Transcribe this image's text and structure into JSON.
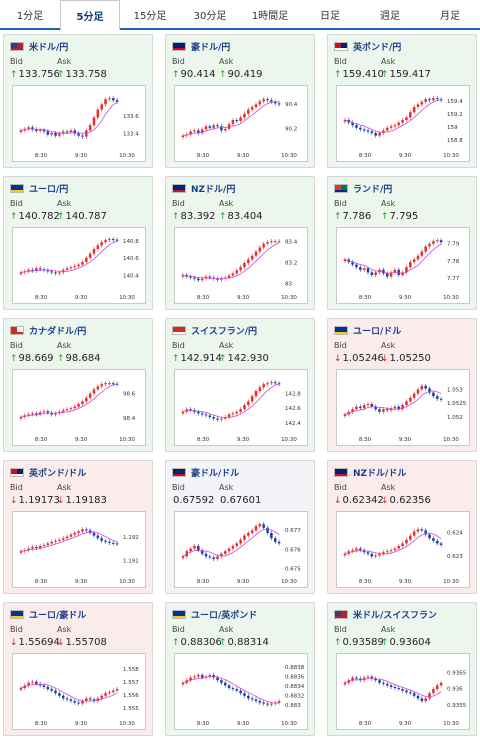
{
  "tabs": [
    {
      "label": "1分足",
      "active": false
    },
    {
      "label": "5分足",
      "active": true
    },
    {
      "label": "15分足",
      "active": false
    },
    {
      "label": "30分足",
      "active": false
    },
    {
      "label": "1時間足",
      "active": false
    },
    {
      "label": "日足",
      "active": false
    },
    {
      "label": "週足",
      "active": false
    },
    {
      "label": "月足",
      "active": false
    }
  ],
  "labels": {
    "bid": "Bid",
    "ask": "Ask"
  },
  "colors": {
    "up_arrow": "#1f9a2f",
    "down_arrow": "#d42020",
    "candle_up": "#e03030",
    "candle_down": "#1d3fa8",
    "ma_line": "#d04ad8",
    "pair_text": "#1b3d8f"
  },
  "cards": [
    {
      "pair": "米ドル/円",
      "flag": "us",
      "trend": "up",
      "bid_dir": "up",
      "bid": "133.756",
      "ask_dir": "up",
      "ask": "133.758",
      "chart": {
        "x_ticks": [
          "8:30",
          "9:30",
          "10:30"
        ],
        "y_ticks": [
          "133.6",
          "133.4"
        ],
        "ylim": [
          133.25,
          133.85
        ],
        "shape": [
          0.3,
          0.33,
          0.36,
          0.32,
          0.29,
          0.31,
          0.28,
          0.22,
          0.25,
          0.2,
          0.24,
          0.28,
          0.27,
          0.3,
          0.24,
          0.2,
          0.18,
          0.3,
          0.4,
          0.55,
          0.7,
          0.8,
          0.9,
          0.92,
          0.88,
          0.85
        ]
      }
    },
    {
      "pair": "豪ドル/円",
      "flag": "au",
      "trend": "up",
      "bid_dir": "up",
      "bid": "90.414",
      "ask_dir": "up",
      "ask": "90.419",
      "chart": {
        "x_ticks": [
          "8:30",
          "9:30",
          "10:30"
        ],
        "y_ticks": [
          "90.4",
          "90.2"
        ],
        "ylim": [
          90.05,
          90.48
        ],
        "shape": [
          0.2,
          0.22,
          0.28,
          0.3,
          0.25,
          0.32,
          0.38,
          0.35,
          0.4,
          0.38,
          0.3,
          0.33,
          0.42,
          0.5,
          0.48,
          0.55,
          0.62,
          0.7,
          0.75,
          0.8,
          0.86,
          0.9,
          0.88,
          0.85,
          0.82,
          0.8
        ]
      }
    },
    {
      "pair": "英ポンド/円",
      "flag": "gb",
      "trend": "up",
      "bid_dir": "up",
      "bid": "159.410",
      "ask_dir": "up",
      "ask": "159.417",
      "chart": {
        "x_ticks": [
          "8:30",
          "9:30",
          "10:30"
        ],
        "y_ticks": [
          "159.4",
          "159.2",
          "159",
          "158.8"
        ],
        "ylim": [
          158.7,
          159.5
        ],
        "shape": [
          0.5,
          0.45,
          0.4,
          0.35,
          0.32,
          0.3,
          0.28,
          0.25,
          0.2,
          0.25,
          0.3,
          0.35,
          0.38,
          0.4,
          0.45,
          0.5,
          0.55,
          0.65,
          0.75,
          0.8,
          0.85,
          0.9,
          0.88,
          0.92,
          0.9,
          0.88
        ]
      }
    },
    {
      "pair": "ユーロ/円",
      "flag": "eu",
      "trend": "up",
      "bid_dir": "up",
      "bid": "140.782",
      "ask_dir": "up",
      "ask": "140.787",
      "chart": {
        "x_ticks": [
          "8:30",
          "9:30",
          "10:30"
        ],
        "y_ticks": [
          "140.8",
          "140.6",
          "140.4"
        ],
        "ylim": [
          140.25,
          140.85
        ],
        "shape": [
          0.3,
          0.32,
          0.35,
          0.33,
          0.38,
          0.36,
          0.34,
          0.32,
          0.3,
          0.28,
          0.3,
          0.35,
          0.38,
          0.4,
          0.42,
          0.45,
          0.5,
          0.58,
          0.66,
          0.75,
          0.82,
          0.88,
          0.92,
          0.94,
          0.93,
          0.92
        ]
      }
    },
    {
      "pair": "NZドル/円",
      "flag": "nz",
      "trend": "up",
      "bid_dir": "up",
      "bid": "83.392",
      "ask_dir": "up",
      "ask": "83.404",
      "chart": {
        "x_ticks": [
          "8:30",
          "9:30",
          "10:30"
        ],
        "y_ticks": [
          "83.4",
          "83.2",
          "83"
        ],
        "ylim": [
          82.95,
          83.45
        ],
        "shape": [
          0.25,
          0.22,
          0.2,
          0.18,
          0.15,
          0.18,
          0.22,
          0.2,
          0.18,
          0.16,
          0.18,
          0.2,
          0.24,
          0.28,
          0.34,
          0.4,
          0.48,
          0.55,
          0.62,
          0.7,
          0.78,
          0.85,
          0.88,
          0.9,
          0.9,
          0.9
        ]
      }
    },
    {
      "pair": "ランド/円",
      "flag": "za",
      "trend": "up",
      "bid_dir": "up",
      "bid": "7.786",
      "ask_dir": "up",
      "ask": "7.795",
      "chart": {
        "x_ticks": [
          "8:30",
          "9:30",
          "10:30"
        ],
        "y_ticks": [
          "7.79",
          "7.78",
          "7.77"
        ],
        "ylim": [
          7.764,
          7.794
        ],
        "shape": [
          0.55,
          0.5,
          0.45,
          0.4,
          0.35,
          0.38,
          0.3,
          0.25,
          0.3,
          0.35,
          0.28,
          0.22,
          0.3,
          0.35,
          0.25,
          0.3,
          0.4,
          0.5,
          0.55,
          0.62,
          0.7,
          0.8,
          0.85,
          0.9,
          0.92,
          0.88
        ]
      }
    },
    {
      "pair": "カナダドル/円",
      "flag": "ca",
      "trend": "up",
      "bid_dir": "up",
      "bid": "98.669",
      "ask_dir": "up",
      "ask": "98.684",
      "chart": {
        "x_ticks": [
          "8:30",
          "9:30",
          "10:30"
        ],
        "y_ticks": [
          "98.6",
          "98.4"
        ],
        "ylim": [
          98.3,
          98.72
        ],
        "shape": [
          0.25,
          0.28,
          0.3,
          0.32,
          0.3,
          0.34,
          0.36,
          0.33,
          0.3,
          0.32,
          0.35,
          0.38,
          0.4,
          0.42,
          0.45,
          0.5,
          0.55,
          0.62,
          0.7,
          0.78,
          0.84,
          0.88,
          0.9,
          0.9,
          0.89,
          0.88
        ]
      }
    },
    {
      "pair": "スイスフラン/円",
      "flag": "ch",
      "trend": "up",
      "bid_dir": "up",
      "bid": "142.914",
      "ask_dir": "up",
      "ask": "142.930",
      "chart": {
        "x_ticks": [
          "8:30",
          "9:30",
          "10:30"
        ],
        "y_ticks": [
          "142.8",
          "142.6",
          "142.4"
        ],
        "ylim": [
          142.3,
          143.0
        ],
        "shape": [
          0.35,
          0.4,
          0.38,
          0.35,
          0.32,
          0.3,
          0.28,
          0.25,
          0.22,
          0.2,
          0.22,
          0.25,
          0.3,
          0.32,
          0.35,
          0.4,
          0.48,
          0.55,
          0.65,
          0.75,
          0.82,
          0.88,
          0.9,
          0.92,
          0.9,
          0.88
        ]
      }
    },
    {
      "pair": "ユーロ/ドル",
      "flag": "eu",
      "trend": "down",
      "bid_dir": "down",
      "bid": "1.05246",
      "ask_dir": "down",
      "ask": "1.05250",
      "chart": {
        "x_ticks": [
          "8:30",
          "9:30",
          "10:30"
        ],
        "y_ticks": [
          "1.053",
          "1.0525",
          "1.052"
        ],
        "ylim": [
          1.0515,
          1.0534
        ],
        "shape": [
          0.3,
          0.35,
          0.4,
          0.45,
          0.42,
          0.48,
          0.5,
          0.45,
          0.4,
          0.35,
          0.4,
          0.38,
          0.42,
          0.45,
          0.4,
          0.48,
          0.55,
          0.62,
          0.7,
          0.78,
          0.85,
          0.8,
          0.72,
          0.65,
          0.6,
          0.58
        ]
      }
    },
    {
      "pair": "英ポンド/ドル",
      "flag": "gb",
      "trend": "down",
      "bid_dir": "down",
      "bid": "1.19173",
      "ask_dir": "down",
      "ask": "1.19183",
      "chart": {
        "x_ticks": [
          "8:30",
          "9:30",
          "10:30"
        ],
        "y_ticks": [
          "1.192",
          "1.191"
        ],
        "ylim": [
          1.1905,
          1.1927
        ],
        "shape": [
          0.4,
          0.42,
          0.45,
          0.48,
          0.46,
          0.5,
          0.52,
          0.55,
          0.58,
          0.6,
          0.62,
          0.65,
          0.68,
          0.72,
          0.75,
          0.78,
          0.82,
          0.8,
          0.75,
          0.7,
          0.65,
          0.6,
          0.58,
          0.56,
          0.55,
          0.54
        ]
      }
    },
    {
      "pair": "豪ドル/ドル",
      "flag": "au",
      "trend": "flat",
      "bid_dir": "none",
      "bid": "0.67592",
      "ask_dir": "none",
      "ask": "0.67601",
      "chart": {
        "x_ticks": [
          "8:30",
          "9:30",
          "10:30"
        ],
        "y_ticks": [
          "0.677",
          "0.676",
          "0.675"
        ],
        "ylim": [
          0.6748,
          0.6775
        ],
        "shape": [
          0.3,
          0.4,
          0.45,
          0.5,
          0.42,
          0.35,
          0.3,
          0.28,
          0.25,
          0.3,
          0.35,
          0.4,
          0.45,
          0.5,
          0.55,
          0.62,
          0.7,
          0.75,
          0.8,
          0.88,
          0.92,
          0.85,
          0.75,
          0.65,
          0.58,
          0.55
        ]
      }
    },
    {
      "pair": "NZドル/ドル",
      "flag": "nz",
      "trend": "down",
      "bid_dir": "down",
      "bid": "0.62342",
      "ask_dir": "down",
      "ask": "0.62356",
      "chart": {
        "x_ticks": [
          "8:30",
          "9:30",
          "10:30"
        ],
        "y_ticks": [
          "0.624",
          "0.623"
        ],
        "ylim": [
          0.6223,
          0.6245
        ],
        "shape": [
          0.35,
          0.4,
          0.42,
          0.45,
          0.42,
          0.38,
          0.35,
          0.3,
          0.32,
          0.35,
          0.38,
          0.4,
          0.42,
          0.45,
          0.5,
          0.55,
          0.62,
          0.7,
          0.78,
          0.82,
          0.8,
          0.72,
          0.65,
          0.6,
          0.55,
          0.52
        ]
      }
    },
    {
      "pair": "ユーロ/豪ドル",
      "flag": "eu",
      "trend": "down",
      "bid_dir": "down",
      "bid": "1.55694",
      "ask_dir": "down",
      "ask": "1.55708",
      "chart": {
        "x_ticks": [
          "8:30",
          "9:30",
          "10:30"
        ],
        "y_ticks": [
          "1.558",
          "1.557",
          "1.556",
          "1.555"
        ],
        "ylim": [
          1.5545,
          1.5585
        ],
        "shape": [
          0.5,
          0.55,
          0.6,
          0.62,
          0.58,
          0.55,
          0.52,
          0.48,
          0.45,
          0.4,
          0.35,
          0.3,
          0.28,
          0.25,
          0.22,
          0.2,
          0.25,
          0.3,
          0.28,
          0.25,
          0.3,
          0.35,
          0.4,
          0.42,
          0.45,
          0.48
        ]
      }
    },
    {
      "pair": "ユーロ/英ポンド",
      "flag": "eu",
      "trend": "up",
      "bid_dir": "up",
      "bid": "0.88306",
      "ask_dir": "up",
      "ask": "0.88314",
      "chart": {
        "x_ticks": [
          "8:30",
          "9:30",
          "10:30"
        ],
        "y_ticks": [
          "0.8838",
          "0.8836",
          "0.8834",
          "0.8832",
          "0.883"
        ],
        "ylim": [
          0.8828,
          0.8839
        ],
        "shape": [
          0.6,
          0.65,
          0.7,
          0.72,
          0.75,
          0.7,
          0.72,
          0.75,
          0.7,
          0.65,
          0.6,
          0.55,
          0.5,
          0.48,
          0.45,
          0.4,
          0.35,
          0.3,
          0.28,
          0.25,
          0.22,
          0.2,
          0.18,
          0.2,
          0.22,
          0.25
        ]
      }
    },
    {
      "pair": "米ドル/スイスフラン",
      "flag": "us",
      "trend": "up",
      "bid_dir": "up",
      "bid": "0.93589",
      "ask_dir": "up",
      "ask": "0.93604",
      "chart": {
        "x_ticks": [
          "8:30",
          "9:30",
          "10:30"
        ],
        "y_ticks": [
          "0.9365",
          "0.936",
          "0.9355"
        ],
        "ylim": [
          0.9352,
          0.9368
        ],
        "shape": [
          0.6,
          0.65,
          0.7,
          0.68,
          0.65,
          0.7,
          0.72,
          0.68,
          0.65,
          0.6,
          0.58,
          0.55,
          0.52,
          0.5,
          0.48,
          0.45,
          0.42,
          0.4,
          0.35,
          0.3,
          0.25,
          0.3,
          0.4,
          0.48,
          0.55,
          0.6
        ]
      }
    }
  ]
}
